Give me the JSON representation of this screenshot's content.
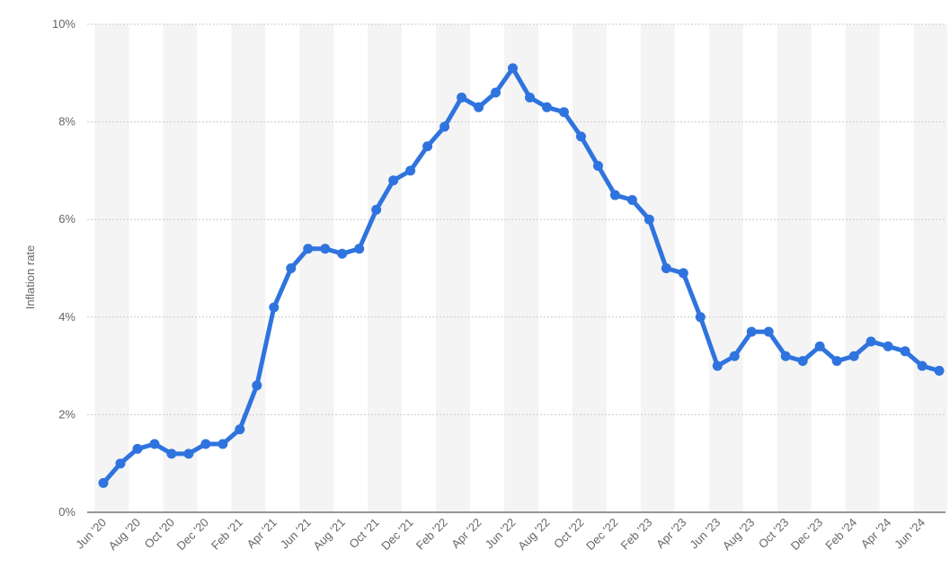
{
  "chart_data": {
    "type": "line",
    "title": "",
    "xlabel": "",
    "ylabel": "Inflation rate",
    "ylim": [
      0,
      10
    ],
    "yticks": [
      0,
      2,
      4,
      6,
      8,
      10
    ],
    "ytick_format": "%",
    "grid": true,
    "x": [
      "Jun '20",
      "Jul '20",
      "Aug '20",
      "Sep '20",
      "Oct '20",
      "Nov '20",
      "Dec '20",
      "Jan '21",
      "Feb '21",
      "Mar '21",
      "Apr '21",
      "May '21",
      "Jun '21",
      "Jul '21",
      "Aug '21",
      "Sep '21",
      "Oct '21",
      "Nov '21",
      "Dec '21",
      "Jan '22",
      "Feb '22",
      "Mar '22",
      "Apr '22",
      "May '22",
      "Jun '22",
      "Jul '22",
      "Aug '22",
      "Sep '22",
      "Oct '22",
      "Nov '22",
      "Dec '22",
      "Jan '23",
      "Feb '23",
      "Mar '23",
      "Apr '23",
      "May '23",
      "Jun '23",
      "Jul '23",
      "Aug '23",
      "Sep '23",
      "Oct '23",
      "Nov '23",
      "Dec '23",
      "Jan '24",
      "Feb '24",
      "Mar '24",
      "Apr '24",
      "May '24",
      "Jun '24",
      "Jul '24"
    ],
    "x_tick_labels": [
      "Jun '20",
      "Aug '20",
      "Oct '20",
      "Dec '20",
      "Feb '21",
      "Apr '21",
      "Jun '21",
      "Aug '21",
      "Oct '21",
      "Dec '21",
      "Feb '22",
      "Apr '22",
      "Jun '22",
      "Aug '22",
      "Oct '22",
      "Dec '22",
      "Feb '23",
      "Apr '23",
      "Jun '23",
      "Aug '23",
      "Oct '23",
      "Dec '23",
      "Feb '24",
      "Apr '24",
      "Jun '24"
    ],
    "series": [
      {
        "color": "#2f74de",
        "values": [
          0.6,
          1.0,
          1.3,
          1.4,
          1.2,
          1.2,
          1.4,
          1.4,
          1.7,
          2.6,
          4.2,
          5.0,
          5.4,
          5.4,
          5.3,
          5.4,
          6.2,
          6.8,
          7.0,
          7.5,
          7.9,
          8.5,
          8.3,
          8.6,
          9.1,
          8.5,
          8.3,
          8.2,
          7.7,
          7.1,
          6.5,
          6.4,
          6.0,
          5.0,
          4.9,
          4.0,
          3.0,
          3.2,
          3.7,
          3.7,
          3.2,
          3.1,
          3.4,
          3.1,
          3.2,
          3.5,
          3.4,
          3.3,
          3.0,
          2.9
        ]
      }
    ]
  }
}
